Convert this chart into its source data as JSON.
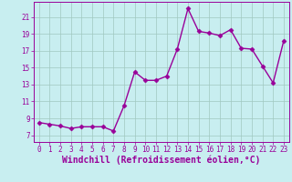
{
  "x": [
    0,
    1,
    2,
    3,
    4,
    5,
    6,
    7,
    8,
    9,
    10,
    11,
    12,
    13,
    14,
    15,
    16,
    17,
    18,
    19,
    20,
    21,
    22,
    23
  ],
  "y": [
    8.5,
    8.3,
    8.1,
    7.8,
    8.0,
    8.0,
    8.0,
    7.5,
    10.5,
    14.5,
    13.5,
    13.5,
    14.0,
    17.2,
    22.0,
    19.3,
    19.1,
    18.8,
    19.5,
    17.3,
    17.2,
    15.2,
    13.2,
    18.2
  ],
  "line_color": "#990099",
  "marker": "D",
  "marker_size": 2.5,
  "bg_color": "#c8eef0",
  "grid_color": "#a0c8c0",
  "xlabel": "Windchill (Refroidissement éolien,°C)",
  "xlim": [
    -0.5,
    23.5
  ],
  "ylim": [
    6.2,
    22.8
  ],
  "yticks": [
    7,
    9,
    11,
    13,
    15,
    17,
    19,
    21
  ],
  "xticks": [
    0,
    1,
    2,
    3,
    4,
    5,
    6,
    7,
    8,
    9,
    10,
    11,
    12,
    13,
    14,
    15,
    16,
    17,
    18,
    19,
    20,
    21,
    22,
    23
  ],
  "tick_color": "#990099",
  "tick_fontsize": 5.5,
  "xlabel_fontsize": 7.0,
  "line_width": 1.0
}
